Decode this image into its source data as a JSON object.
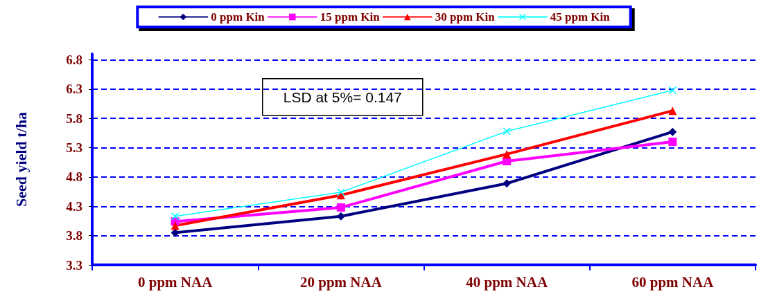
{
  "chart_data": {
    "type": "line",
    "ylabel": "Seed yield t/ha",
    "categories": [
      "0 ppm NAA",
      "20 ppm NAA",
      "40 ppm NAA",
      "60 ppm NAA"
    ],
    "series": [
      {
        "name": "0 ppm Kin",
        "color": "#000080",
        "marker": "diamond",
        "values": [
          3.85,
          4.13,
          4.69,
          5.57
        ]
      },
      {
        "name": "15 ppm Kin",
        "color": "#ff00ff",
        "marker": "square",
        "values": [
          4.04,
          4.28,
          5.07,
          5.4
        ]
      },
      {
        "name": "30 ppm Kin",
        "color": "#ff0000",
        "marker": "triangle",
        "values": [
          3.97,
          4.49,
          5.19,
          5.93
        ]
      },
      {
        "name": "45 ppm Kin",
        "color": "#00ffff",
        "marker": "cross",
        "values": [
          4.13,
          4.54,
          5.58,
          6.28
        ]
      }
    ],
    "ylim": [
      3.3,
      6.9
    ],
    "yticks": [
      3.3,
      3.8,
      4.3,
      4.8,
      5.3,
      5.8,
      6.3,
      6.8
    ],
    "grid": "y",
    "legend": "top",
    "line_style": "solid",
    "annotations": [
      "LSD at 5%= 0.147"
    ]
  }
}
